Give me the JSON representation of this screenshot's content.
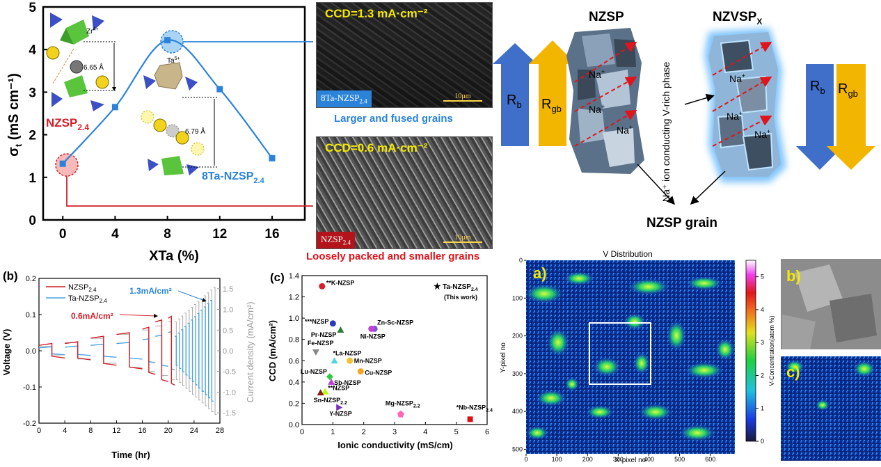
{
  "panel_a": {
    "chart_data": {
      "type": "line",
      "x": [
        0,
        4,
        8,
        12,
        16
      ],
      "y": [
        1.32,
        2.65,
        4.22,
        3.07,
        1.45
      ],
      "xlabel": "XTa (%)",
      "ylabel_main": "σ",
      "ylabel_sub": "t",
      "ylabel_unit": " (mS cm⁻¹)",
      "xticks": [
        "0",
        "4",
        "8",
        "12",
        "16"
      ],
      "yticks": [
        "0",
        "1",
        "2",
        "3",
        "4",
        "5"
      ],
      "xlim": [
        -1.5,
        18.5
      ],
      "ylim": [
        0,
        5
      ],
      "color": "#2b83d9"
    },
    "label_nzsp": "NZSP",
    "label_nzsp_sub": "2.4",
    "label_8ta": "8Ta-NZSP",
    "label_8ta_sub": "2.4",
    "ion_zr": "Zr",
    "ion_zr_sup": "4+",
    "ion_ta": "Ta",
    "ion_ta_sup": "5+",
    "dist1": "6.65 Å",
    "dist2": "6.79 Å"
  },
  "sem_top": {
    "title": "CCD=1.3 mA·cm⁻²",
    "tag": "8Ta-NZSP",
    "tag_sub": "2.4",
    "scale": "10μm",
    "caption": "Larger and fused grains"
  },
  "sem_bottom": {
    "title": "CCD=0.6 mA·cm⁻²",
    "tag": "NZSP",
    "tag_sub": "2.4",
    "scale": "10μm",
    "caption": "Loosely packed and smaller grains"
  },
  "schematic": {
    "title_left": "NZSP",
    "title_right_main": "NZVSP",
    "title_right_sub": "X",
    "rb": "R",
    "rb_sub": "b",
    "rgb": "R",
    "rgb_sub": "gb",
    "na": "Na",
    "na_sup": "+",
    "vertical_label": "Na⁺ ion conducting V-rich phase",
    "grain_label": "NZSP grain"
  },
  "panel_b": {
    "panel_label": "(b)",
    "chart_data": {
      "type": "line",
      "xlabel": "Time (hr)",
      "ylabel": "Voltage (V)",
      "y2label": "Current density (mA/cm²)",
      "xticks": [
        "0",
        "2",
        "4",
        "6",
        "8",
        "10",
        "12",
        "14",
        "16",
        "18",
        "20",
        "22",
        "24",
        "26",
        "28"
      ],
      "yticks": [
        "-0.2",
        "-0.1",
        "0.0",
        "0.1",
        "0.2"
      ],
      "y2ticks": [
        "-1.5",
        "-1.0",
        "-0.5",
        "0.0",
        "0.5",
        "1.0",
        "1.5"
      ],
      "xlim": [
        0,
        28
      ],
      "ylim": [
        -0.2,
        0.2
      ],
      "y2lim": [
        -1.75,
        1.75
      ],
      "series": [
        {
          "name": "NZSP",
          "name_sub": "2.4",
          "color": "#d21f2a"
        },
        {
          "name": "Ta-NZSP",
          "name_sub": "2.4",
          "color": "#4aa3e0"
        }
      ],
      "annotations": [
        "0.6mA/cm²",
        "1.3mA/cm²"
      ]
    }
  },
  "panel_c": {
    "panel_label": "(c)",
    "chart_data": {
      "type": "scatter",
      "xlabel": "Ionic conductivity (mS/cm)",
      "ylabel": "CCD (mA/cm²)",
      "xticks": [
        "0",
        "1",
        "2",
        "3",
        "4",
        "5",
        "6"
      ],
      "yticks": [
        "0.0",
        "0.2",
        "0.4",
        "0.6",
        "0.8",
        "1.0",
        "1.2",
        "1.4"
      ],
      "xlim": [
        0,
        6
      ],
      "ylim": [
        0,
        1.4
      ],
      "points": [
        {
          "label": "**K-NZSP",
          "x": 0.65,
          "y": 1.3,
          "color": "#d21f2a",
          "shape": "circle"
        },
        {
          "label": "***NZSP",
          "x": 1.0,
          "y": 0.95,
          "color": "#2a3bbf",
          "shape": "circle"
        },
        {
          "label": "Pr-NZSP",
          "x": 1.25,
          "y": 0.89,
          "color": "#2e7d32",
          "shape": "triangle"
        },
        {
          "label": "Zn-Sc-NZSP",
          "x": 2.35,
          "y": 0.9,
          "color": "#7b52d8",
          "shape": "circle"
        },
        {
          "label": "Ni-NZSP",
          "x": 2.25,
          "y": 0.9,
          "color": "#c23fd8",
          "shape": "circle"
        },
        {
          "label": "Fe-NZSP",
          "x": 0.45,
          "y": 0.68,
          "color": "#888888",
          "shape": "triangle-down"
        },
        {
          "label": "*La-NZSP",
          "x": 1.05,
          "y": 0.6,
          "color": "#4fd6e0",
          "shape": "triangle"
        },
        {
          "label": "Mn-NZSP",
          "x": 1.55,
          "y": 0.6,
          "color": "#f2c12e",
          "shape": "circle"
        },
        {
          "label": "Cu-NZSP",
          "x": 1.9,
          "y": 0.5,
          "color": "#f5a623",
          "shape": "circle"
        },
        {
          "label": "Lu-NZSP",
          "x": 0.9,
          "y": 0.45,
          "color": "#2ecc40",
          "shape": "diamond"
        },
        {
          "label": "Sb-NZSP",
          "x": 0.95,
          "y": 0.4,
          "color": "#c23fd8",
          "shape": "triangle"
        },
        {
          "label": "**NZSP",
          "x": 0.75,
          "y": 0.31,
          "color": "#b3ff00",
          "shape": "triangle"
        },
        {
          "label": "Sn-NZSP",
          "label_sub": "2.2",
          "x": 0.6,
          "y": 0.3,
          "color": "#8b1a1a",
          "shape": "triangle"
        },
        {
          "label": "Y-NZSP",
          "x": 1.2,
          "y": 0.16,
          "color": "#7b2fbf",
          "shape": "triangle-right"
        },
        {
          "label": "Mg-NZSP",
          "label_sub": "2.2",
          "x": 3.2,
          "y": 0.1,
          "color": "#ff69b4",
          "shape": "pentagon"
        },
        {
          "label": "*Nb-NZSP",
          "label_sub": "2.4",
          "x": 5.45,
          "y": 0.05,
          "color": "#e01010",
          "shape": "square"
        }
      ],
      "legend": "Ta-NZSP",
      "legend_sub": "2.4",
      "legend_note": "(This work)"
    }
  },
  "panel_v": {
    "title": "V Distribution",
    "label_a": "a)",
    "label_b": "b)",
    "label_c": "c)",
    "xlabel": "X-pixel no",
    "ylabel": "Y-pixel no",
    "xticks": [
      "0",
      "100",
      "200",
      "300",
      "400",
      "500",
      "600"
    ],
    "yticks": [
      "0",
      "100",
      "200",
      "300",
      "400",
      "500"
    ],
    "colorbar_label": "V-Concentration(atom %)",
    "colorbar_ticks": [
      "0",
      "1",
      "2",
      "3",
      "4",
      "5"
    ]
  }
}
